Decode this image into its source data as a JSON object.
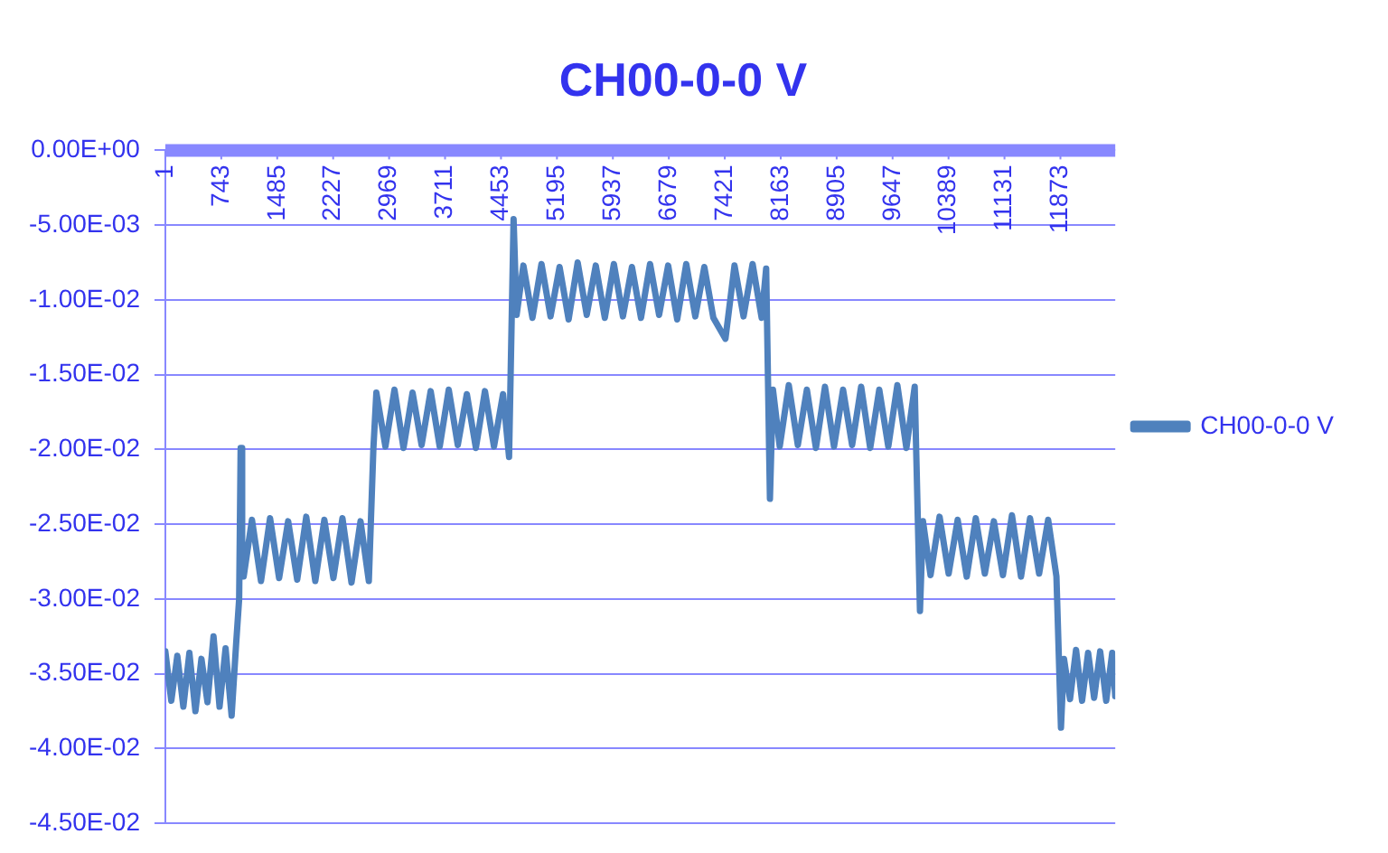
{
  "chart_data": {
    "type": "line",
    "title": "CH00-0-0 V",
    "legend": "right",
    "grid": "y",
    "marker": "none",
    "line_style": "solid",
    "xlim": [
      1,
      12600
    ],
    "xticks": [
      1,
      743,
      1485,
      2227,
      2969,
      3711,
      4453,
      5195,
      5937,
      6679,
      7421,
      8163,
      8905,
      9647,
      10389,
      11131,
      11873
    ],
    "ylim": [
      -0.045,
      0
    ],
    "yticks": [
      {
        "value": 0,
        "label": "0.00E+00"
      },
      {
        "value": -0.005,
        "label": "-5.00E-03"
      },
      {
        "value": -0.01,
        "label": "-1.00E-02"
      },
      {
        "value": -0.015,
        "label": "-1.50E-02"
      },
      {
        "value": -0.02,
        "label": "-2.00E-02"
      },
      {
        "value": -0.025,
        "label": "-2.50E-02"
      },
      {
        "value": -0.03,
        "label": "-3.00E-02"
      },
      {
        "value": -0.035,
        "label": "-3.50E-02"
      },
      {
        "value": -0.04,
        "label": "-4.00E-02"
      },
      {
        "value": -0.045,
        "label": "-4.50E-02"
      }
    ],
    "series": [
      {
        "name": "CH00-0-0 V",
        "color": "#4f81bd",
        "x": [
          1,
          80,
          160,
          240,
          320,
          400,
          480,
          560,
          640,
          720,
          800,
          880,
          940,
          980,
          1000,
          1020,
          1040,
          1150,
          1270,
          1390,
          1510,
          1630,
          1750,
          1870,
          1990,
          2110,
          2230,
          2350,
          2470,
          2590,
          2700,
          2760,
          2800,
          2920,
          3040,
          3160,
          3280,
          3400,
          3520,
          3640,
          3760,
          3880,
          4000,
          4120,
          4240,
          4360,
          4480,
          4560,
          4620,
          4660,
          4750,
          4870,
          4990,
          5110,
          5230,
          5350,
          5470,
          5590,
          5710,
          5830,
          5950,
          6070,
          6190,
          6310,
          6430,
          6550,
          6670,
          6790,
          6910,
          7030,
          7150,
          7270,
          7430,
          7550,
          7670,
          7790,
          7910,
          7970,
          8020,
          8060,
          8150,
          8270,
          8390,
          8510,
          8630,
          8750,
          8870,
          8990,
          9110,
          9230,
          9350,
          9470,
          9590,
          9710,
          9830,
          9940,
          10010,
          10050,
          10150,
          10270,
          10390,
          10510,
          10630,
          10750,
          10870,
          10990,
          11110,
          11230,
          11350,
          11470,
          11590,
          11710,
          11820,
          11880,
          11920,
          12000,
          12080,
          12160,
          12240,
          12320,
          12400,
          12480,
          12560,
          12600
        ],
        "values": [
          -0.0335,
          -0.0368,
          -0.0338,
          -0.0372,
          -0.0336,
          -0.0375,
          -0.034,
          -0.0369,
          -0.0325,
          -0.0372,
          -0.0333,
          -0.0378,
          -0.033,
          -0.03,
          -0.0199,
          -0.026,
          -0.0285,
          -0.0247,
          -0.0288,
          -0.0246,
          -0.0286,
          -0.0248,
          -0.0287,
          -0.0245,
          -0.0288,
          -0.0247,
          -0.0286,
          -0.0246,
          -0.0289,
          -0.0248,
          -0.0288,
          -0.02,
          -0.0162,
          -0.0198,
          -0.016,
          -0.0199,
          -0.0162,
          -0.0197,
          -0.0161,
          -0.0198,
          -0.016,
          -0.0197,
          -0.0163,
          -0.0199,
          -0.0161,
          -0.0198,
          -0.0163,
          -0.0205,
          -0.0046,
          -0.011,
          -0.0077,
          -0.0112,
          -0.0076,
          -0.0111,
          -0.0078,
          -0.0113,
          -0.0075,
          -0.011,
          -0.0077,
          -0.0112,
          -0.0076,
          -0.0111,
          -0.0078,
          -0.0112,
          -0.0076,
          -0.011,
          -0.0077,
          -0.0113,
          -0.0076,
          -0.0111,
          -0.0078,
          -0.0112,
          -0.0126,
          -0.0077,
          -0.0111,
          -0.0076,
          -0.0112,
          -0.0079,
          -0.0233,
          -0.016,
          -0.0198,
          -0.0157,
          -0.0197,
          -0.016,
          -0.0199,
          -0.0158,
          -0.0198,
          -0.016,
          -0.0197,
          -0.0158,
          -0.0199,
          -0.016,
          -0.0198,
          -0.0157,
          -0.0199,
          -0.0158,
          -0.0308,
          -0.0248,
          -0.0284,
          -0.0245,
          -0.0283,
          -0.0247,
          -0.0285,
          -0.0246,
          -0.0283,
          -0.0248,
          -0.0284,
          -0.0244,
          -0.0285,
          -0.0246,
          -0.0283,
          -0.0247,
          -0.0285,
          -0.0386,
          -0.034,
          -0.0367,
          -0.0334,
          -0.0368,
          -0.0336,
          -0.0366,
          -0.0335,
          -0.0368,
          -0.0336,
          -0.0365
        ]
      }
    ]
  }
}
